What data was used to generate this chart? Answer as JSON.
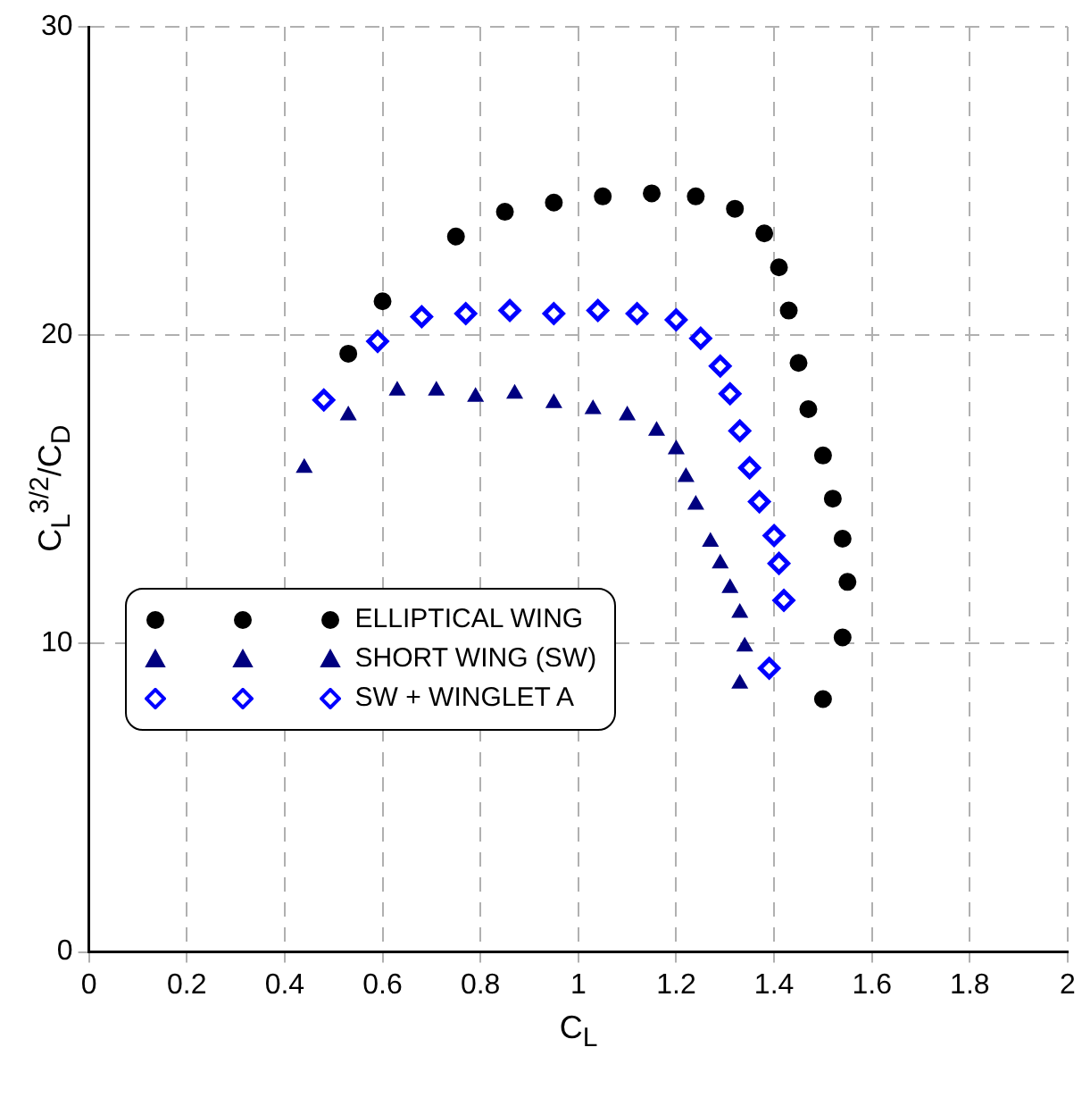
{
  "chart_data": {
    "type": "scatter",
    "xlabel": "C$_{L}$",
    "ylabel": "C$_{L}$$^{3/2}$/C$_{D}$",
    "xlim": [
      0,
      2
    ],
    "xticks": [
      0,
      0.2,
      0.4,
      0.6,
      0.8,
      1,
      1.2,
      1.4,
      1.6,
      1.8,
      2
    ],
    "ylim": [
      0,
      30
    ],
    "yticks": [
      0,
      10,
      20,
      30
    ],
    "grid": true,
    "legend": "left",
    "series": [
      {
        "name": "ELLIPTICAL WING",
        "color": "#000000",
        "marker": "circle",
        "x": [
          0.53,
          0.6,
          0.75,
          0.85,
          0.95,
          1.05,
          1.15,
          1.24,
          1.32,
          1.38,
          1.41,
          1.43,
          1.45,
          1.47,
          1.5,
          1.52,
          1.54,
          1.55,
          1.54,
          1.5
        ],
        "values": [
          19.4,
          21.1,
          23.2,
          24,
          24.3,
          24.5,
          24.6,
          24.5,
          24.1,
          23.3,
          22.2,
          20.8,
          19.1,
          17.6,
          16.1,
          14.7,
          13.4,
          12,
          10.2,
          8.2
        ]
      },
      {
        "name": "SHORT WING (SW)",
        "color": "#000080",
        "marker": "triangle",
        "x": [
          0.44,
          0.53,
          0.63,
          0.71,
          0.79,
          0.87,
          0.95,
          1.03,
          1.1,
          1.16,
          1.2,
          1.22,
          1.24,
          1.27,
          1.29,
          1.31,
          1.33,
          1.34,
          1.33
        ],
        "values": [
          15.7,
          17.4,
          18.2,
          18.2,
          18,
          18.1,
          17.8,
          17.6,
          17.4,
          16.9,
          16.3,
          15.4,
          14.5,
          13.3,
          12.6,
          11.8,
          11,
          9.9,
          8.7
        ]
      },
      {
        "name": "SW + WINGLET A",
        "color": "#0000ff",
        "marker": "diamond",
        "x": [
          0.48,
          0.59,
          0.68,
          0.77,
          0.86,
          0.95,
          1.04,
          1.12,
          1.2,
          1.25,
          1.29,
          1.31,
          1.33,
          1.35,
          1.37,
          1.4,
          1.41,
          1.42,
          1.39
        ],
        "values": [
          17.9,
          19.8,
          20.6,
          20.7,
          20.8,
          20.7,
          20.8,
          20.7,
          20.5,
          19.9,
          19,
          18.1,
          16.9,
          15.7,
          14.6,
          13.5,
          12.6,
          11.4,
          9.2
        ]
      }
    ]
  }
}
